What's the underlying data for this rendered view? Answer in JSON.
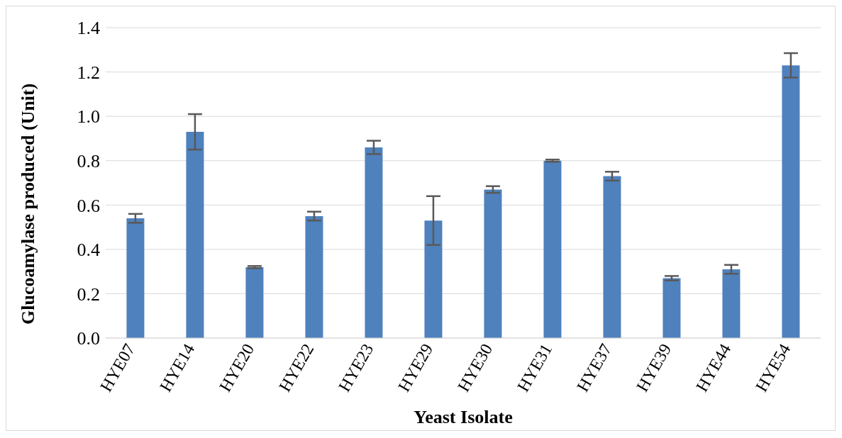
{
  "chart_data": {
    "type": "bar",
    "xlabel": "Yeast Isolate",
    "ylabel": "Glucoamylase produced (Unit)",
    "categories": [
      "HYE07",
      "HYE14",
      "HYE20",
      "HYE22",
      "HYE23",
      "HYE29",
      "HYE30",
      "HYE31",
      "HYE37",
      "HYE39",
      "HYE44",
      "HYE54"
    ],
    "values": [
      0.54,
      0.93,
      0.32,
      0.55,
      0.86,
      0.53,
      0.67,
      0.8,
      0.73,
      0.27,
      0.31,
      1.23
    ],
    "errors": [
      0.02,
      0.08,
      0.005,
      0.02,
      0.03,
      0.11,
      0.015,
      0.005,
      0.02,
      0.01,
      0.02,
      0.055
    ],
    "color": "#4f81bd",
    "ylim": [
      0,
      1.4
    ],
    "yticks": [
      {
        "value": 0,
        "label": "0.0"
      },
      {
        "value": 0.2,
        "label": "0.2"
      },
      {
        "value": 0.4,
        "label": "0.4"
      },
      {
        "value": 0.6,
        "label": "0.6"
      },
      {
        "value": 0.8,
        "label": "0.8"
      },
      {
        "value": 1,
        "label": "1.0"
      },
      {
        "value": 1.2,
        "label": "1.2"
      },
      {
        "value": 1.4,
        "label": "1.4"
      }
    ],
    "grid": "y",
    "legend": false
  }
}
